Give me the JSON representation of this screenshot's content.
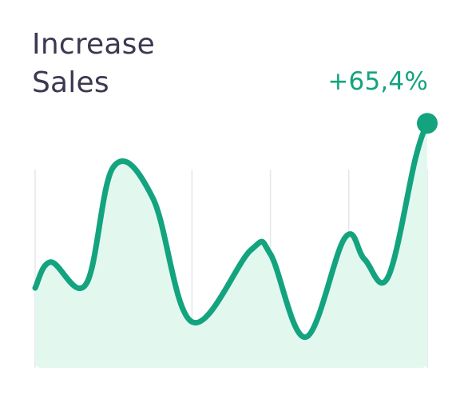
{
  "title_lines": [
    "Increase",
    "Sales"
  ],
  "change_label": "+65,4%",
  "colors": {
    "line": "#14a37f",
    "area": "#e2f8ef",
    "grid": "#e3e6ec",
    "title": "#3a3950"
  },
  "chart_data": {
    "type": "area",
    "title": "Increase Sales",
    "xlabel": "",
    "ylabel": "",
    "xlim": [
      0,
      10
    ],
    "ylim": [
      0,
      100
    ],
    "grid": "vertical",
    "legend": "none",
    "highlight_last_point": true,
    "x": [
      0,
      0.4,
      1.3,
      2.0,
      3.0,
      4.0,
      5.5,
      6.0,
      6.9,
      7.9,
      8.4,
      9.0,
      9.7,
      10.0
    ],
    "values": [
      32.0,
      42.4,
      33.6,
      80.6,
      68.1,
      18.4,
      47.2,
      45.6,
      12.3,
      52.1,
      43.5,
      36.4,
      84.0,
      98.0
    ]
  }
}
